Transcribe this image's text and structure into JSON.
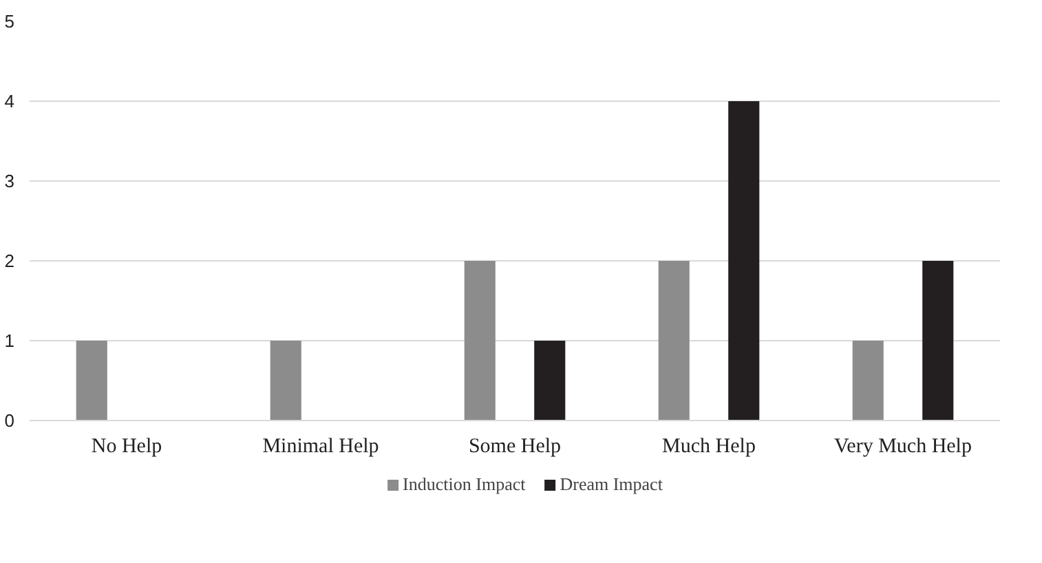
{
  "chart_data": {
    "type": "bar",
    "categories": [
      "No Help",
      "Minimal Help",
      "Some Help",
      "Much Help",
      "Very Much Help"
    ],
    "series": [
      {
        "name": "Induction Impact",
        "color": "#8c8c8c",
        "values": [
          1,
          1,
          2,
          2,
          1
        ]
      },
      {
        "name": "Dream Impact",
        "color": "#231f20",
        "values": [
          0,
          0,
          1,
          4,
          2
        ]
      }
    ],
    "ylim": [
      0,
      5
    ],
    "yticks": [
      0,
      1,
      2,
      3,
      4,
      5
    ],
    "grid": "y",
    "legend": "bottom"
  }
}
